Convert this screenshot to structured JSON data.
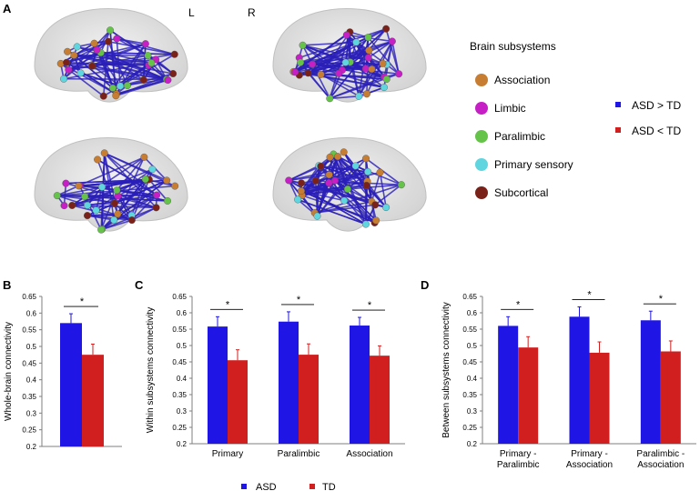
{
  "panels": {
    "a": "A",
    "b": "B",
    "c": "C",
    "d": "D"
  },
  "hemisphere_labels": {
    "left": "L",
    "right": "R"
  },
  "subsystem_legend": {
    "title": "Brain subsystems",
    "items": [
      {
        "label": "Association",
        "color": "#c77d32"
      },
      {
        "label": "Limbic",
        "color": "#c51fc5"
      },
      {
        "label": "Paralimbic",
        "color": "#66c34a"
      },
      {
        "label": "Primary sensory",
        "color": "#5fd5df"
      },
      {
        "label": "Subcortical",
        "color": "#7a2119"
      }
    ]
  },
  "direction_legend": {
    "items": [
      {
        "label": "ASD > TD",
        "color": "#1f16e6"
      },
      {
        "label": "ASD < TD",
        "color": "#d11e1e"
      }
    ]
  },
  "bottom_legend": {
    "items": [
      {
        "label": "ASD",
        "color": "#1f16e6"
      },
      {
        "label": "TD",
        "color": "#d11e1e"
      }
    ]
  },
  "colors": {
    "asd": "#1f16e6",
    "td": "#d11e1e",
    "edge": "#2a1fb8",
    "brain": "#d6d6d6"
  },
  "chart_data": [
    {
      "type": "bar",
      "panel": "B",
      "ylabel": "Whole-brain connectivity",
      "ylim": [
        0.2,
        0.65
      ],
      "yticks": [
        "0.2",
        "0.25",
        "0.3",
        "0.35",
        "0.4",
        "0.45",
        "0.5",
        "0.55",
        "0.6",
        "0.65"
      ],
      "categories": [
        ""
      ],
      "series": [
        {
          "name": "ASD",
          "values": [
            0.57
          ],
          "errors": [
            0.028
          ]
        },
        {
          "name": "TD",
          "values": [
            0.475
          ],
          "errors": [
            0.032
          ]
        }
      ],
      "significance": [
        "*"
      ]
    },
    {
      "type": "bar",
      "panel": "C",
      "ylabel": "Within subsystems connectivity",
      "ylim": [
        0.2,
        0.65
      ],
      "yticks": [
        "0.2",
        "0.25",
        "0.3",
        "0.35",
        "0.4",
        "0.45",
        "0.5",
        "0.55",
        "0.6",
        "0.65"
      ],
      "categories": [
        "Primary",
        "Paralimbic",
        "Association"
      ],
      "series": [
        {
          "name": "ASD",
          "values": [
            0.558,
            0.573,
            0.561
          ],
          "errors": [
            0.03,
            0.03,
            0.025
          ]
        },
        {
          "name": "TD",
          "values": [
            0.455,
            0.472,
            0.469
          ],
          "errors": [
            0.032,
            0.033,
            0.03
          ]
        }
      ],
      "significance": [
        "*",
        "*",
        "*"
      ]
    },
    {
      "type": "bar",
      "panel": "D",
      "ylabel": "Between subsystems connectivity",
      "ylim": [
        0.2,
        0.65
      ],
      "yticks": [
        "0.2",
        "0.25",
        "0.3",
        "0.35",
        "0.4",
        "0.45",
        "0.5",
        "0.55",
        "0.6",
        "0.65"
      ],
      "categories": [
        [
          "Primary -",
          "Paralimbic"
        ],
        [
          "Primary -",
          "Association"
        ],
        [
          "Paralimbic -",
          "Association"
        ]
      ],
      "series": [
        {
          "name": "ASD",
          "values": [
            0.56,
            0.588,
            0.577
          ],
          "errors": [
            0.028,
            0.03,
            0.028
          ]
        },
        {
          "name": "TD",
          "values": [
            0.494,
            0.478,
            0.482
          ],
          "errors": [
            0.033,
            0.033,
            0.032
          ]
        }
      ],
      "significance": [
        "*",
        "*",
        "*"
      ]
    }
  ]
}
